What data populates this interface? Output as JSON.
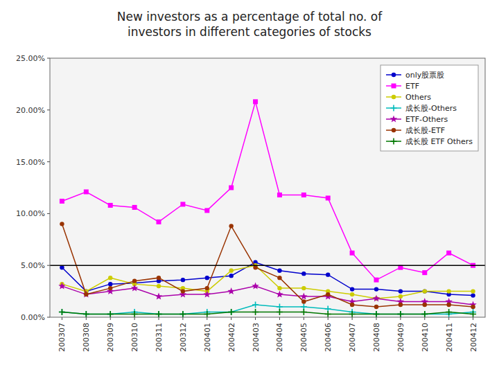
{
  "chart_data": {
    "type": "line",
    "title": "New investors as a percentage of total no. of\ninvestors in different categories of stocks",
    "categories": [
      "200307",
      "200308",
      "200309",
      "200310",
      "200311",
      "200312",
      "200401",
      "200402",
      "200403",
      "200404",
      "200405",
      "200406",
      "200407",
      "200408",
      "200409",
      "200410",
      "200411",
      "200412"
    ],
    "series": [
      {
        "name": "only股票股",
        "color": "#0000cc",
        "marker": "circle",
        "line_style": "solid",
        "values": [
          4.8,
          2.5,
          3.2,
          3.3,
          3.5,
          3.6,
          3.8,
          4.0,
          5.3,
          4.5,
          4.2,
          4.1,
          2.7,
          2.7,
          2.5,
          2.5,
          2.2,
          2.1
        ]
      },
      {
        "name": "ETF",
        "color": "#ff00ff",
        "marker": "square",
        "line_style": "solid",
        "values": [
          11.2,
          12.1,
          10.8,
          10.6,
          9.2,
          10.9,
          10.3,
          12.5,
          20.8,
          11.8,
          11.8,
          11.5,
          6.2,
          3.6,
          4.8,
          4.3,
          6.2,
          5.0
        ]
      },
      {
        "name": "Others",
        "color": "#cccc00",
        "marker": "circle",
        "line_style": "solid",
        "values": [
          3.2,
          2.5,
          3.8,
          3.2,
          3.0,
          2.8,
          2.5,
          4.5,
          5.0,
          2.8,
          2.8,
          2.5,
          2.2,
          1.8,
          2.0,
          2.5,
          2.5,
          2.5
        ]
      },
      {
        "name": "成长股-Others",
        "color": "#00bbbb",
        "marker": "plus",
        "line_style": "solid",
        "values": [
          0.5,
          0.3,
          0.3,
          0.5,
          0.3,
          0.3,
          0.5,
          0.5,
          1.2,
          1.0,
          1.0,
          0.8,
          0.5,
          0.3,
          0.3,
          0.3,
          0.3,
          0.5
        ]
      },
      {
        "name": "ETF-Others",
        "color": "#aa00aa",
        "marker": "star",
        "line_style": "solid",
        "values": [
          3.0,
          2.2,
          2.5,
          2.8,
          2.0,
          2.2,
          2.2,
          2.5,
          3.0,
          2.2,
          2.0,
          2.0,
          1.5,
          1.8,
          1.5,
          1.5,
          1.5,
          1.2
        ]
      },
      {
        "name": "成长股-ETF",
        "color": "#993300",
        "marker": "circle",
        "line_style": "solid",
        "values": [
          9.0,
          2.2,
          2.8,
          3.5,
          3.8,
          2.5,
          2.8,
          8.8,
          4.8,
          3.8,
          1.5,
          2.2,
          1.2,
          1.0,
          1.2,
          1.2,
          1.2,
          1.0
        ]
      },
      {
        "name": "成长股 ETF Others",
        "color": "#007700",
        "marker": "plus",
        "line_style": "solid",
        "values": [
          0.5,
          0.3,
          0.3,
          0.3,
          0.3,
          0.3,
          0.3,
          0.5,
          0.5,
          0.5,
          0.5,
          0.3,
          0.3,
          0.3,
          0.3,
          0.3,
          0.5,
          0.3
        ]
      }
    ],
    "hline_y": 5.0,
    "ylim": [
      0,
      25
    ],
    "yticks": [
      {
        "value": 0,
        "label": "0.00%"
      },
      {
        "value": 5,
        "label": "5.00%"
      },
      {
        "value": 10,
        "label": "10.00%"
      },
      {
        "value": 15,
        "label": "15.00%"
      },
      {
        "value": 20,
        "label": "20.00%"
      },
      {
        "value": 25,
        "label": "25.00%"
      }
    ],
    "grid": false,
    "legend": "upper right"
  }
}
